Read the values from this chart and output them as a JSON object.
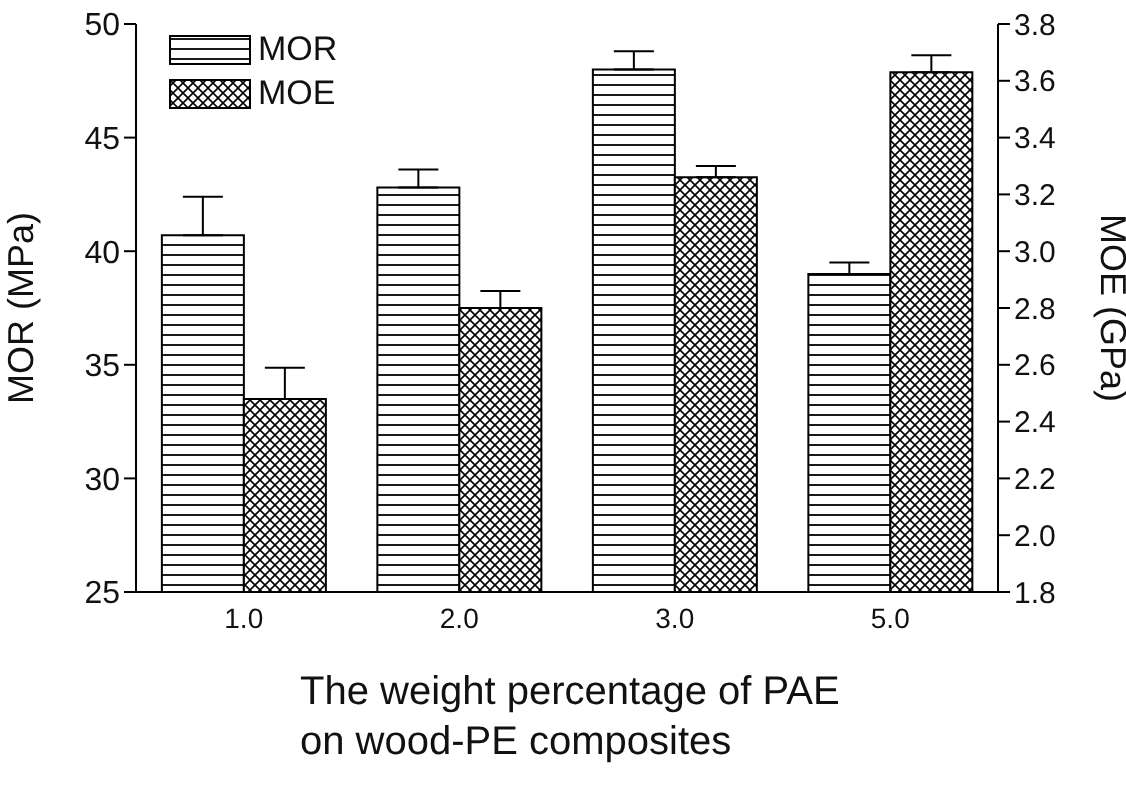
{
  "chart_data": {
    "type": "bar",
    "xlabel": "The weight percentage of PAE on wood-PE composites",
    "ylabel": "MOR (MPa)",
    "y2label": "MOE (GPa)",
    "categories": [
      "1.0",
      "2.0",
      "3.0",
      "5.0"
    ],
    "series": [
      {
        "name": "MOR",
        "color": "#000000",
        "values": [
          40.7,
          42.8,
          48.0,
          39.0
        ],
        "errors": [
          [
            40.7,
            42.4
          ],
          [
            42.8,
            43.6
          ],
          [
            48.0,
            48.8
          ],
          [
            39.0,
            39.5
          ]
        ]
      },
      {
        "name": "MOE",
        "color": "#000000",
        "axis": "y2",
        "values": [
          2.48,
          2.8,
          3.26,
          3.63
        ],
        "errors": [
          [
            2.48,
            2.59
          ],
          [
            2.8,
            2.86
          ],
          [
            3.26,
            3.3
          ],
          [
            3.63,
            3.69
          ]
        ]
      }
    ],
    "ylim": [
      25,
      50
    ],
    "yticks": [
      25,
      30,
      35,
      40,
      45,
      50
    ],
    "y2lim": [
      1.8,
      3.8
    ],
    "y2ticks": [
      1.8,
      {
        "value": 2,
        "label": "2.0"
      },
      2.2,
      2.4,
      2.6,
      2.8,
      {
        "value": 3,
        "label": "3.0"
      },
      3.2,
      3.4,
      3.6,
      3.8
    ],
    "legend": "top left",
    "grid": false
  }
}
